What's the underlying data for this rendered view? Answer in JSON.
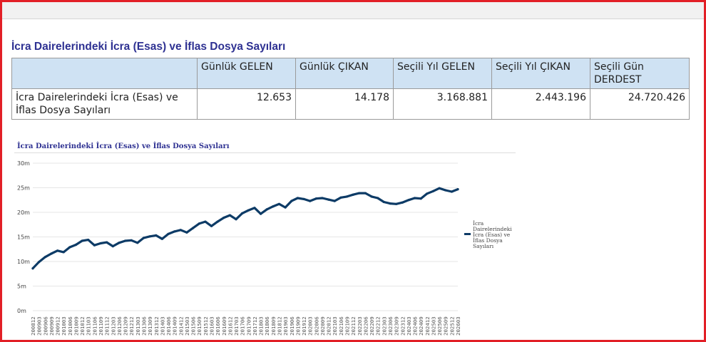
{
  "page": {
    "title": "İcra Dairelerindeki İcra (Esas) ve İflas Dosya Sayıları"
  },
  "summary_table": {
    "headers": [
      "",
      "Günlük GELEN",
      "Günlük ÇIKAN",
      "Seçili Yıl GELEN",
      "Seçili Yıl ÇIKAN",
      "Seçili Gün DERDEST"
    ],
    "rows": [
      [
        "İcra Dairelerindeki İcra (Esas) ve İflas Dosya Sayıları",
        "12.653",
        "14.178",
        "3.168.881",
        "2.443.196",
        "24.720.426"
      ]
    ]
  },
  "colors": {
    "frame": "#e21f26",
    "title": "#2e3192",
    "header_bg": "#cfe2f3",
    "series": "#0d3b66"
  },
  "chart_data": {
    "type": "line",
    "title": "İcra Dairelerindeki İcra (Esas) ve İflas Dosya Sayıları",
    "xlabel": "",
    "ylabel": "",
    "ylim": [
      0,
      30
    ],
    "y_ticks": [
      0,
      5,
      10,
      15,
      20,
      25,
      30
    ],
    "y_tick_labels": [
      "0m",
      "5m",
      "10m",
      "15m",
      "20m",
      "25m",
      "30m"
    ],
    "grid": true,
    "legend_position": "right",
    "x_tick_labels": [
      "200812",
      "200903",
      "200906",
      "200909",
      "200912",
      "201003",
      "201006",
      "201009",
      "201012",
      "201103",
      "201106",
      "201109",
      "201112",
      "201203",
      "201206",
      "201209",
      "201212",
      "201303",
      "201306",
      "201309",
      "201312",
      "201403",
      "201406",
      "201409",
      "201412",
      "201503",
      "201506",
      "201509",
      "201512",
      "201603",
      "201606",
      "201609",
      "201612",
      "201703",
      "201706",
      "201709",
      "201712",
      "201803",
      "201806",
      "201809",
      "201812",
      "201903",
      "201906",
      "201909",
      "201912",
      "202003",
      "202006",
      "202009",
      "202012",
      "202103",
      "202106",
      "202109",
      "202112",
      "202203",
      "202206",
      "202209",
      "202212",
      "202303",
      "202306",
      "202309",
      "202312",
      "202403",
      "202406",
      "202409",
      "202412",
      "202503",
      "202506",
      "202509",
      "202512",
      "202603"
    ],
    "series": [
      {
        "name": "İcra Dairelerindeki İcra (Esas) ve İflas Dosya Sayıları",
        "color": "#0d3b66",
        "values": [
          8.6,
          9.9,
          10.9,
          11.6,
          12.2,
          11.9,
          12.9,
          13.4,
          14.2,
          14.4,
          13.3,
          13.7,
          13.9,
          13.1,
          13.8,
          14.2,
          14.3,
          13.8,
          14.8,
          15.1,
          15.3,
          14.6,
          15.6,
          16.1,
          16.4,
          15.9,
          16.8,
          17.7,
          18.1,
          17.2,
          18.1,
          18.9,
          19.4,
          18.6,
          19.8,
          20.4,
          20.9,
          19.7,
          20.6,
          21.2,
          21.7,
          21.0,
          22.3,
          22.9,
          22.7,
          22.3,
          22.8,
          22.9,
          22.6,
          22.3,
          23.0,
          23.2,
          23.6,
          23.9,
          23.9,
          23.2,
          22.9,
          22.1,
          21.8,
          21.7,
          22.0,
          22.5,
          22.9,
          22.8,
          23.8,
          24.3,
          24.9,
          24.5,
          24.2,
          24.7
        ]
      }
    ]
  }
}
